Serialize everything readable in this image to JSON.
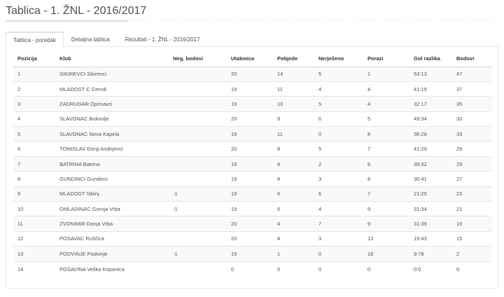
{
  "title": "Tablica - 1. ŽNL - 2016/2017",
  "tabs": [
    {
      "label": "Tablica - poredak",
      "active": true
    },
    {
      "label": "Detaljna tablica"
    },
    {
      "label": "Rezultati - 1. ŽNL - 2016/2017"
    }
  ],
  "table": {
    "headers": [
      "Pozicija",
      "Klub",
      "Neg. bodovi",
      "Utakmica",
      "Pobjede",
      "Nerješeno",
      "Porazi",
      "Gol razlika",
      "Bodovi"
    ],
    "rows": [
      [
        "1",
        "SIKIREVCI Sikirevci",
        "",
        "20",
        "14",
        "5",
        "1",
        "53:13",
        "47"
      ],
      [
        "2",
        "MLADOST C Cernik",
        "",
        "19",
        "11",
        "4",
        "4",
        "41:19",
        "37"
      ],
      [
        "3",
        "ZADRUGAR Oprisavci",
        "",
        "19",
        "10",
        "5",
        "4",
        "32:17",
        "35"
      ],
      [
        "4",
        "SLAVONAC Bukovlje",
        "",
        "20",
        "9",
        "6",
        "5",
        "49:34",
        "33"
      ],
      [
        "5",
        "SLAVONAC Nova Kapela",
        "",
        "19",
        "11",
        "0",
        "8",
        "36:28",
        "33"
      ],
      [
        "6",
        "TOMISLAV Donji Andrijevci",
        "",
        "20",
        "8",
        "5",
        "7",
        "41:29",
        "29"
      ],
      [
        "7",
        "BATRINA Batrina",
        "",
        "19",
        "9",
        "2",
        "8",
        "39:32",
        "29"
      ],
      [
        "8",
        "GUNDINCI Gundinci",
        "",
        "19",
        "8",
        "3",
        "8",
        "30:41",
        "27"
      ],
      [
        "9",
        "MLADOST Sibinj",
        "-1",
        "19",
        "6",
        "6",
        "7",
        "21:25",
        "23"
      ],
      [
        "10",
        "OMLADINAC Gornja Vrba",
        "-1",
        "19",
        "6",
        "4",
        "9",
        "31:34",
        "21"
      ],
      [
        "11",
        "ZVONIMIR Donja Vrba",
        "",
        "20",
        "4",
        "7",
        "9",
        "31:39",
        "19"
      ],
      [
        "12",
        "POSAVAC Ruščica",
        "",
        "20",
        "4",
        "3",
        "13",
        "19:43",
        "15"
      ],
      [
        "13",
        "PODVINJE Podvinje",
        "-1",
        "19",
        "1",
        "0",
        "18",
        "9:78",
        "2"
      ],
      [
        "14",
        "POSAVINA Velika Kopanica",
        "",
        "0",
        "0",
        "0",
        "0",
        "0:0",
        "0"
      ]
    ]
  }
}
